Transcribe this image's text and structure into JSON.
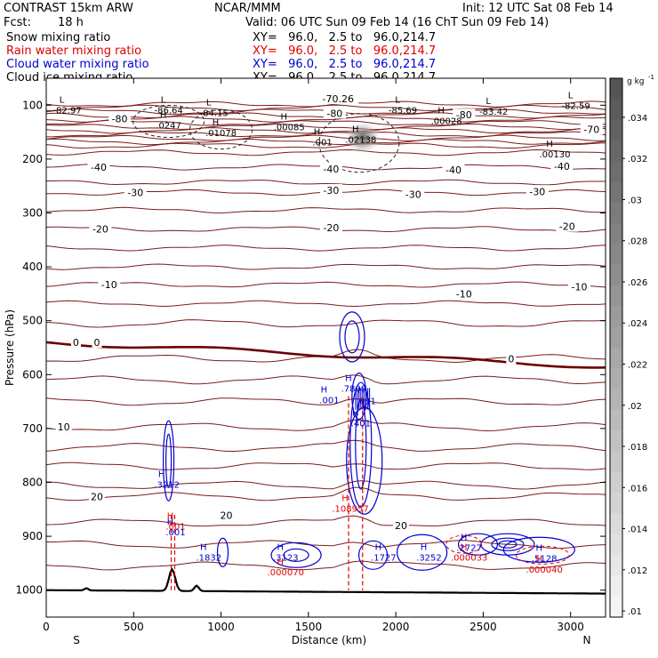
{
  "header": {
    "model": "CONTRAST 15km ARW",
    "org": "NCAR/MMM",
    "init": "Init: 12 UTC Sat 08 Feb 14",
    "fcst_label": "Fcst:",
    "fcst_value": "18 h",
    "valid": "Valid: 06 UTC Sun 09 Feb 14 (16 ChT Sun 09 Feb 14)"
  },
  "fields": [
    {
      "name": "Snow mixing ratio",
      "xy": "XY=   96.0,   2.5 to   96.0,214.7",
      "color": "#000000"
    },
    {
      "name": "Rain water mixing ratio",
      "xy": "XY=   96.0,   2.5 to   96.0,214.7",
      "color": "#e00000"
    },
    {
      "name": "Cloud water mixing ratio",
      "xy": "XY=   96.0,   2.5 to   96.0,214.7",
      "color": "#0000d0"
    },
    {
      "name": "Cloud ice mixing ratio",
      "xy": "XY=   96.0,   2.5 to   96.0,214.7",
      "color": "#000000"
    }
  ],
  "chart_data": {
    "type": "cross-section",
    "xlabel": "Distance (km)",
    "ylabel": "Pressure (hPa)",
    "xlim": [
      0,
      3200
    ],
    "ylim": [
      1050,
      50
    ],
    "x_ticks": [
      0,
      500,
      1000,
      1500,
      2000,
      2500,
      3000
    ],
    "y_ticks": [
      100,
      200,
      300,
      400,
      500,
      600,
      700,
      800,
      900,
      1000
    ],
    "x_end_labels": {
      "left": "S",
      "right": "N"
    },
    "colorbar": {
      "unit_base": "g kg",
      "unit_exp": "-1",
      "ticks": [
        ".034",
        ".032",
        ".03",
        ".028",
        ".026",
        ".024",
        ".022",
        ".02",
        ".018",
        ".016",
        ".014",
        ".012",
        ".01"
      ],
      "dark_color": "#555555",
      "light_color": "#f4f4f4"
    },
    "temperature_colors": {
      "isotherm": "#7a1c1c",
      "zero_isotherm": "#6a0000"
    },
    "temperature_labels": [
      {
        "text": "-80",
        "x": 420,
        "p": 125
      },
      {
        "text": "-80",
        "x": 1650,
        "p": 115
      },
      {
        "text": "-80",
        "x": 2390,
        "p": 118
      },
      {
        "text": "-70.26",
        "x": 1670,
        "p": 88
      },
      {
        "text": "-70",
        "x": 3120,
        "p": 145
      },
      {
        "text": "-40",
        "x": 300,
        "p": 215
      },
      {
        "text": "-40",
        "x": 1630,
        "p": 218
      },
      {
        "text": "-40",
        "x": 2330,
        "p": 220
      },
      {
        "text": "-40",
        "x": 2950,
        "p": 213
      },
      {
        "text": "-30",
        "x": 510,
        "p": 262
      },
      {
        "text": "-30",
        "x": 1630,
        "p": 258
      },
      {
        "text": "-30",
        "x": 2100,
        "p": 265
      },
      {
        "text": "-30",
        "x": 2810,
        "p": 260
      },
      {
        "text": "-20",
        "x": 310,
        "p": 330
      },
      {
        "text": "-20",
        "x": 1630,
        "p": 327
      },
      {
        "text": "-20",
        "x": 2980,
        "p": 325
      },
      {
        "text": "-10",
        "x": 360,
        "p": 433
      },
      {
        "text": "-10",
        "x": 2390,
        "p": 450
      },
      {
        "text": "-10",
        "x": 3050,
        "p": 437
      },
      {
        "text": "0",
        "x": 170,
        "p": 540
      },
      {
        "text": "0",
        "x": 290,
        "p": 540
      },
      {
        "text": "0",
        "x": 2660,
        "p": 571
      },
      {
        "text": "10",
        "x": 100,
        "p": 697
      },
      {
        "text": "20",
        "x": 290,
        "p": 826
      },
      {
        "text": "20",
        "x": 1030,
        "p": 861
      },
      {
        "text": "20",
        "x": 2030,
        "p": 880
      }
    ],
    "extrema_labels": [
      {
        "letter": "L",
        "value": "-82.97",
        "x": 120,
        "p": 100,
        "color": "#000000"
      },
      {
        "letter": "L",
        "value": "-86.64",
        "x": 700,
        "p": 100,
        "color": "#000000"
      },
      {
        "letter": "L",
        "value": "-84.15",
        "x": 960,
        "p": 105,
        "color": "#000000"
      },
      {
        "letter": "L",
        "value": "-85.69",
        "x": 2040,
        "p": 100,
        "color": "#000000"
      },
      {
        "letter": "L",
        "value": "-83.42",
        "x": 2560,
        "p": 103,
        "color": "#000000"
      },
      {
        "letter": "L",
        "value": "-82.59",
        "x": 3030,
        "p": 92,
        "color": "#000000"
      },
      {
        "letter": "H",
        "value": ".0247",
        "x": 700,
        "p": 128,
        "color": "#000000"
      },
      {
        "letter": "H",
        "value": ".01078",
        "x": 1000,
        "p": 142,
        "color": "#000000"
      },
      {
        "letter": "H",
        "value": ".00085",
        "x": 1390,
        "p": 132,
        "color": "#000000"
      },
      {
        "letter": "H",
        "value": ".001",
        "x": 1580,
        "p": 160,
        "color": "#000000"
      },
      {
        "letter": "H",
        "value": ".02138",
        "x": 1800,
        "p": 155,
        "color": "#000000"
      },
      {
        "letter": "H",
        "value": ".00028",
        "x": 2290,
        "p": 120,
        "color": "#000000"
      },
      {
        "letter": "H",
        "value": ".00130",
        "x": 2910,
        "p": 182,
        "color": "#000000"
      },
      {
        "letter": "H",
        "value": ".7809",
        "x": 1760,
        "p": 617,
        "color": "#0000d0"
      },
      {
        "letter": "H",
        "value": ".001",
        "x": 1620,
        "p": 638,
        "color": "#0000d0"
      },
      {
        "letter": "H",
        "value": ".001",
        "x": 1830,
        "p": 640,
        "color": "#0000d0"
      },
      {
        "letter": "H",
        "value": ".401",
        "x": 1800,
        "p": 681,
        "color": "#0000d0"
      },
      {
        "letter": "H",
        "value": ".3212",
        "x": 690,
        "p": 795,
        "color": "#0000d0"
      },
      {
        "letter": "H",
        "value": ".001",
        "x": 740,
        "p": 873,
        "color": "#e00000"
      },
      {
        "letter": "H",
        "value": ".001",
        "x": 740,
        "p": 883,
        "color": "#0000d0"
      },
      {
        "letter": "H",
        "value": ".108957",
        "x": 1740,
        "p": 840,
        "color": "#e00000"
      },
      {
        "letter": "H",
        "value": ".1832",
        "x": 930,
        "p": 930,
        "color": "#0000d0"
      },
      {
        "letter": "H",
        "value": ".3123",
        "x": 1370,
        "p": 930,
        "color": "#0000d0"
      },
      {
        "letter": "H",
        "value": ".000070",
        "x": 1370,
        "p": 958,
        "color": "#e00000"
      },
      {
        "letter": "H",
        "value": ".1727",
        "x": 1930,
        "p": 930,
        "color": "#0000d0"
      },
      {
        "letter": "H",
        "value": ".3252",
        "x": 2190,
        "p": 930,
        "color": "#0000d0"
      },
      {
        "letter": "H",
        "value": ".2727",
        "x": 2420,
        "p": 912,
        "color": "#0000d0"
      },
      {
        "letter": "H",
        "value": ".000033",
        "x": 2420,
        "p": 930,
        "color": "#e00000"
      },
      {
        "letter": "H",
        "value": ".5128",
        "x": 2850,
        "p": 932,
        "color": "#0000d0"
      },
      {
        "letter": "H",
        "value": ".000040",
        "x": 2850,
        "p": 953,
        "color": "#e00000"
      }
    ]
  }
}
